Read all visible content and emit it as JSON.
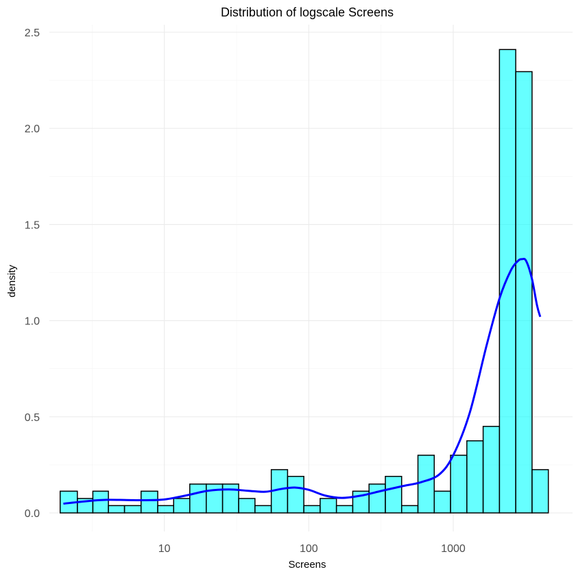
{
  "chart_data": {
    "type": "bar",
    "title": "Distribution of logscale Screens",
    "xlabel": "Screens",
    "ylabel": "density",
    "x_scale": "log10",
    "xlim": [
      1.6,
      6700
    ],
    "ylim": [
      0,
      2.55
    ],
    "x_ticks": [
      10,
      100,
      1000
    ],
    "x_tick_labels": [
      "10",
      "100",
      "1000"
    ],
    "y_ticks": [
      0,
      0.5,
      1,
      1.5,
      2,
      2.5
    ],
    "y_tick_labels": [
      "0.0",
      "0.5",
      "1.0",
      "1.5",
      "2.0",
      "2.5"
    ],
    "grid": true,
    "bar_fill": "#00ffff",
    "bar_fill_opacity": 0.6,
    "bar_outline": "#000000",
    "density_color": "#0000ff",
    "bins": [
      {
        "x_min": 1.9,
        "x_max": 2.5,
        "density": 0.113
      },
      {
        "x_min": 2.5,
        "x_max": 3.2,
        "density": 0.075
      },
      {
        "x_min": 3.2,
        "x_max": 4.1,
        "density": 0.113
      },
      {
        "x_min": 4.1,
        "x_max": 5.3,
        "density": 0.038
      },
      {
        "x_min": 5.3,
        "x_max": 6.9,
        "density": 0.038
      },
      {
        "x_min": 6.9,
        "x_max": 9.0,
        "density": 0.113
      },
      {
        "x_min": 9.0,
        "x_max": 11.6,
        "density": 0.038
      },
      {
        "x_min": 11.6,
        "x_max": 15.0,
        "density": 0.075
      },
      {
        "x_min": 15.0,
        "x_max": 19.5,
        "density": 0.15
      },
      {
        "x_min": 19.5,
        "x_max": 25.3,
        "density": 0.15
      },
      {
        "x_min": 25.3,
        "x_max": 32.7,
        "density": 0.15
      },
      {
        "x_min": 32.7,
        "x_max": 42.4,
        "density": 0.075
      },
      {
        "x_min": 42.4,
        "x_max": 55.0,
        "density": 0.038
      },
      {
        "x_min": 55.0,
        "x_max": 71.3,
        "density": 0.225
      },
      {
        "x_min": 71.3,
        "x_max": 92.4,
        "density": 0.19
      },
      {
        "x_min": 92.4,
        "x_max": 119.8,
        "density": 0.038
      },
      {
        "x_min": 119.8,
        "x_max": 155.4,
        "density": 0.075
      },
      {
        "x_min": 155.4,
        "x_max": 201.5,
        "density": 0.038
      },
      {
        "x_min": 201.5,
        "x_max": 261.3,
        "density": 0.113
      },
      {
        "x_min": 261.3,
        "x_max": 338.8,
        "density": 0.15
      },
      {
        "x_min": 338.8,
        "x_max": 439.3,
        "density": 0.19
      },
      {
        "x_min": 439.3,
        "x_max": 569.7,
        "density": 0.038
      },
      {
        "x_min": 569.7,
        "x_max": 738.7,
        "density": 0.3
      },
      {
        "x_min": 738.7,
        "x_max": 957.9,
        "density": 0.113
      },
      {
        "x_min": 957.9,
        "x_max": 1242.1,
        "density": 0.3
      },
      {
        "x_min": 1242.1,
        "x_max": 1610.7,
        "density": 0.375
      },
      {
        "x_min": 1610.7,
        "x_max": 2088.6,
        "density": 0.45
      },
      {
        "x_min": 2088.6,
        "x_max": 2708.3,
        "density": 2.41
      },
      {
        "x_min": 2708.3,
        "x_max": 3512,
        "density": 2.295
      },
      {
        "x_min": 3512,
        "x_max": 4554,
        "density": 0.225
      }
    ],
    "density_curve": {
      "x": [
        2.0,
        3.0,
        4.0,
        5.5,
        7.5,
        10,
        14,
        20,
        28,
        38,
        50,
        65,
        80,
        100,
        130,
        170,
        230,
        320,
        450,
        600,
        800,
        1000,
        1300,
        1700,
        2100,
        2500,
        2800,
        3000,
        3200,
        3500,
        3800,
        4000
      ],
      "y": [
        0.048,
        0.062,
        0.068,
        0.067,
        0.066,
        0.07,
        0.09,
        0.115,
        0.122,
        0.115,
        0.11,
        0.125,
        0.132,
        0.12,
        0.09,
        0.078,
        0.09,
        0.115,
        0.14,
        0.16,
        0.2,
        0.3,
        0.52,
        0.87,
        1.12,
        1.26,
        1.31,
        1.32,
        1.31,
        1.22,
        1.08,
        1.02
      ]
    }
  }
}
